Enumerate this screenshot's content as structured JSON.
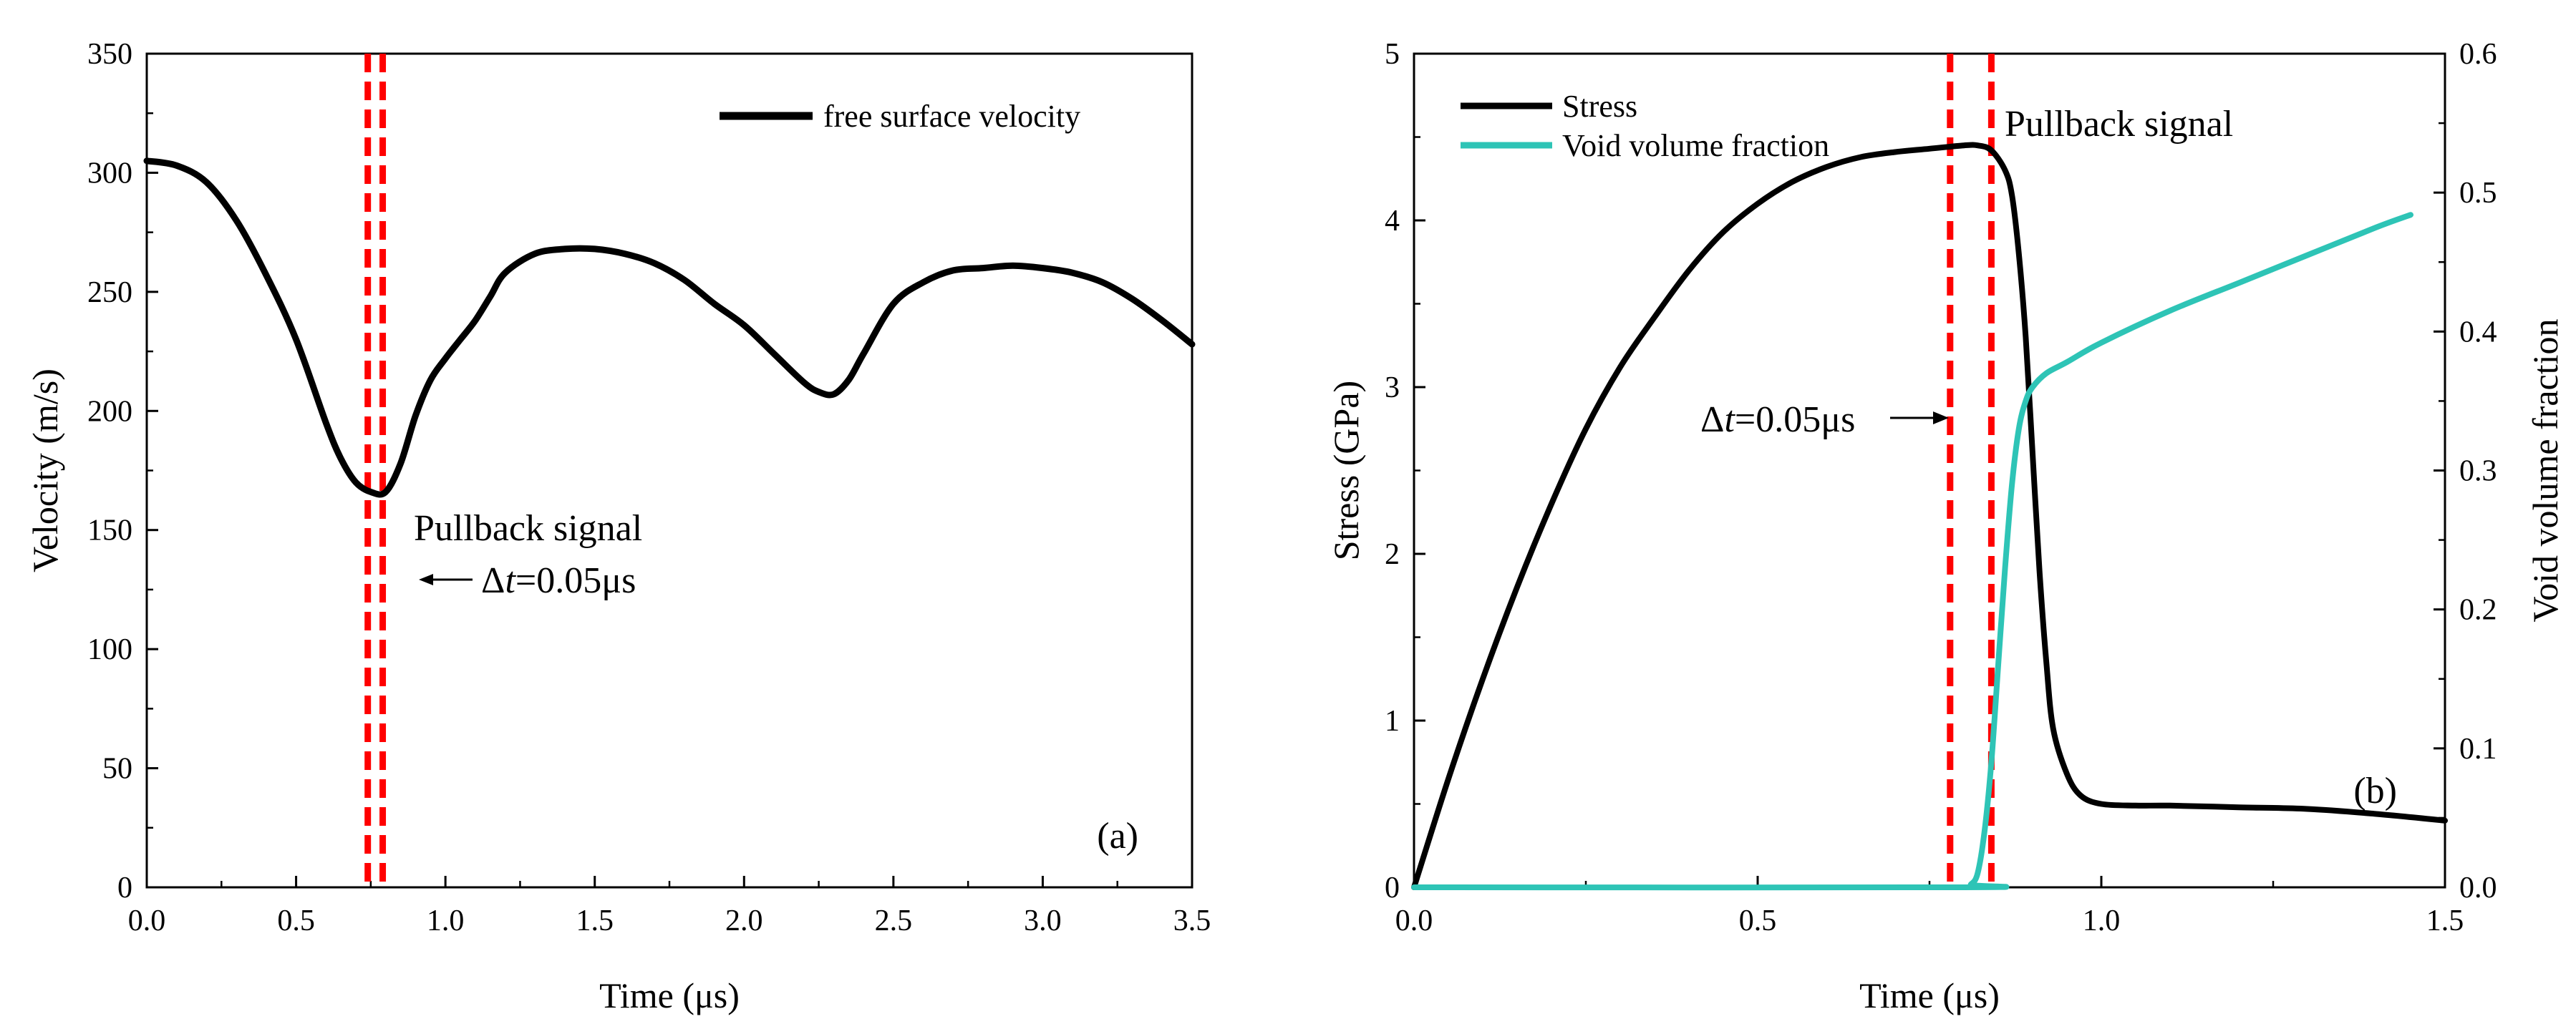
{
  "chart_data": [
    {
      "type": "line",
      "panel_label": "(a)",
      "xlabel": "Time (μs)",
      "ylabel": "Velocity (m/s)",
      "xlim": [
        0,
        3.5
      ],
      "ylim": [
        0,
        350
      ],
      "xticks": [
        0,
        0.5,
        1.0,
        1.5,
        2.0,
        2.5,
        3.0,
        3.5
      ],
      "xtick_labels": [
        "0.0",
        "0.5",
        "1.0",
        "1.5",
        "2.0",
        "2.5",
        "3.0",
        "3.5"
      ],
      "yticks": [
        0,
        50,
        100,
        150,
        200,
        250,
        300,
        350
      ],
      "ytick_labels": [
        "0",
        "50",
        "100",
        "150",
        "200",
        "250",
        "300",
        "350"
      ],
      "series": [
        {
          "name": "free surface velocity",
          "color": "#000000",
          "x": [
            0,
            0.1,
            0.2,
            0.3,
            0.4,
            0.5,
            0.6,
            0.65,
            0.7,
            0.75,
            0.8,
            0.85,
            0.9,
            0.95,
            1.0,
            1.05,
            1.1,
            1.15,
            1.2,
            1.3,
            1.4,
            1.5,
            1.6,
            1.7,
            1.8,
            1.9,
            2.0,
            2.1,
            2.2,
            2.25,
            2.3,
            2.35,
            2.4,
            2.5,
            2.6,
            2.7,
            2.8,
            2.9,
            3.0,
            3.1,
            3.2,
            3.3,
            3.4,
            3.5
          ],
          "y": [
            305,
            303,
            296,
            280,
            257,
            230,
            195,
            180,
            170,
            166,
            166,
            178,
            198,
            213,
            222,
            230,
            238,
            248,
            258,
            266,
            268,
            268,
            266,
            262,
            255,
            245,
            236,
            224,
            212,
            208,
            207,
            213,
            224,
            245,
            254,
            259,
            260,
            261,
            260,
            258,
            254,
            247,
            238,
            228
          ]
        }
      ],
      "vlines": {
        "x": [
          0.74,
          0.79
        ],
        "color": "#ff0000",
        "style": "dashed"
      },
      "annotations": {
        "pullback": "Pullback signal",
        "dt": "Δt=0.05μs"
      }
    },
    {
      "type": "line",
      "panel_label": "(b)",
      "xlabel": "Time (μs)",
      "ylabel": "Stress (GPa)",
      "y2label": "Void volume fraction",
      "xlim": [
        0,
        1.5
      ],
      "ylim": [
        0,
        5
      ],
      "y2lim": [
        0,
        0.6
      ],
      "xticks": [
        0,
        0.5,
        1.0,
        1.5
      ],
      "xtick_labels": [
        "0.0",
        "0.5",
        "1.0",
        "1.5"
      ],
      "yticks": [
        0,
        1,
        2,
        3,
        4,
        5
      ],
      "ytick_labels": [
        "0",
        "1",
        "2",
        "3",
        "4",
        "5"
      ],
      "y2ticks": [
        0,
        0.1,
        0.2,
        0.3,
        0.4,
        0.5,
        0.6
      ],
      "y2tick_labels": [
        "0.0",
        "0.1",
        "0.2",
        "0.3",
        "0.4",
        "0.5",
        "0.6"
      ],
      "series": [
        {
          "name": "Stress",
          "axis": "left",
          "color": "#000000",
          "x": [
            0,
            0.05,
            0.1,
            0.15,
            0.2,
            0.25,
            0.3,
            0.35,
            0.4,
            0.45,
            0.5,
            0.55,
            0.6,
            0.65,
            0.7,
            0.75,
            0.8,
            0.82,
            0.84,
            0.86,
            0.87,
            0.88,
            0.89,
            0.9,
            0.91,
            0.92,
            0.93,
            0.95,
            0.97,
            1.0,
            1.05,
            1.1,
            1.2,
            1.3,
            1.4,
            1.5
          ],
          "y": [
            0,
            0.65,
            1.25,
            1.8,
            2.3,
            2.75,
            3.12,
            3.42,
            3.7,
            3.93,
            4.1,
            4.23,
            4.32,
            4.38,
            4.41,
            4.43,
            4.45,
            4.45,
            4.42,
            4.3,
            4.15,
            3.8,
            3.3,
            2.6,
            1.9,
            1.35,
            0.95,
            0.68,
            0.55,
            0.5,
            0.49,
            0.49,
            0.48,
            0.47,
            0.44,
            0.4
          ]
        },
        {
          "name": "Void volume fraction",
          "axis": "right",
          "color": "#2ec4b6",
          "x": [
            0,
            0.8,
            0.81,
            0.82,
            0.83,
            0.84,
            0.85,
            0.86,
            0.87,
            0.88,
            0.89,
            0.9,
            0.92,
            0.95,
            1.0,
            1.1,
            1.2,
            1.3,
            1.4,
            1.45
          ],
          "y": [
            0,
            0,
            0.002,
            0.01,
            0.04,
            0.09,
            0.16,
            0.23,
            0.29,
            0.33,
            0.35,
            0.36,
            0.37,
            0.378,
            0.392,
            0.415,
            0.435,
            0.455,
            0.475,
            0.484
          ]
        }
      ],
      "vlines": {
        "x": [
          0.78,
          0.84
        ],
        "color": "#ff0000",
        "style": "dashed"
      },
      "annotations": {
        "pullback": "Pullback signal",
        "dt": "Δt=0.05μs"
      }
    }
  ]
}
